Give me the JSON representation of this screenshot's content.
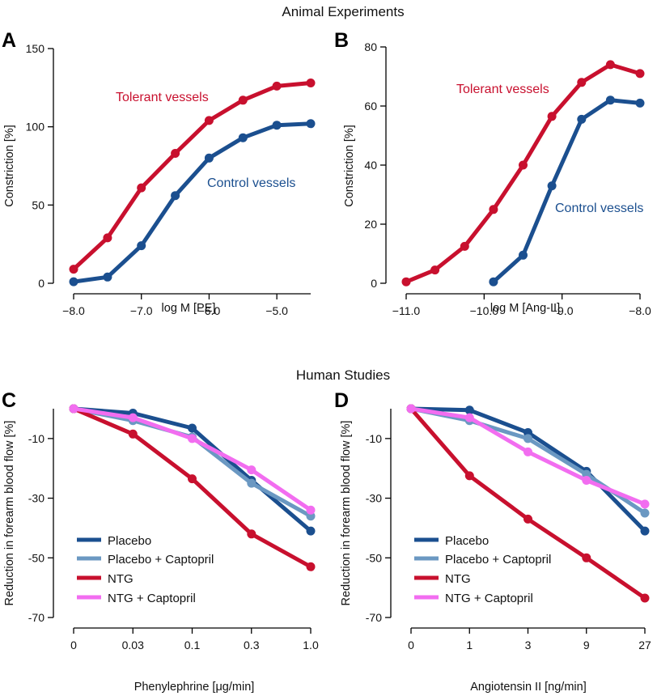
{
  "titles": {
    "top": "Animal Experiments",
    "bottom": "Human Studies"
  },
  "colors": {
    "red": "#c8102e",
    "blue": "#1b4f8f",
    "lightblue": "#6b98c2",
    "pink": "#f26df0"
  },
  "chart_data": [
    {
      "id": "A",
      "type": "line",
      "letter": "A",
      "xlabel": "log M [PE]",
      "ylabel": "Constriction [%]",
      "xlim": [
        -8.0,
        -4.5
      ],
      "ylim": [
        0,
        150
      ],
      "xticks": [
        -8.0,
        -7.0,
        -6.0,
        -5.0
      ],
      "xticklabels": [
        "−8.0",
        "−7.0",
        "−6.0",
        "−5.0"
      ],
      "yticks": [
        0,
        50,
        100,
        150
      ],
      "yticklabels": [
        "0",
        "50",
        "100",
        "150"
      ],
      "series": [
        {
          "name": "Tolerant vessels",
          "color": "red",
          "x": [
            -8.0,
            -7.5,
            -7.0,
            -6.5,
            -6.0,
            -5.5,
            -5.0,
            -4.5
          ],
          "y": [
            9,
            29,
            61,
            83,
            104,
            117,
            126,
            128
          ]
        },
        {
          "name": "Control vessels",
          "color": "blue",
          "x": [
            -8.0,
            -7.5,
            -7.0,
            -6.5,
            -6.0,
            -5.5,
            -5.0,
            -4.5
          ],
          "y": [
            1,
            4,
            24,
            56,
            80,
            93,
            101,
            102
          ]
        }
      ]
    },
    {
      "id": "B",
      "type": "line",
      "letter": "B",
      "xlabel": "log M [Ang-II]",
      "ylabel": "Constriction [%]",
      "xlim": [
        -11.0,
        -8.0
      ],
      "ylim": [
        0,
        80
      ],
      "xticks": [
        -11.0,
        -10.0,
        -9.0,
        -8.0
      ],
      "xticklabels": [
        "−11.0",
        "−10.0",
        "−9.0",
        "−8.0"
      ],
      "yticks": [
        0,
        20,
        40,
        60,
        80
      ],
      "yticklabels": [
        "0",
        "20",
        "40",
        "60",
        "80"
      ],
      "series": [
        {
          "name": "Tolerant vessels",
          "color": "red",
          "x": [
            -11.0,
            -10.63,
            -10.25,
            -9.88,
            -9.5,
            -9.13,
            -8.75,
            -8.38,
            -8.0
          ],
          "y": [
            0.5,
            4.5,
            12.5,
            25,
            40,
            56.5,
            68,
            74,
            71
          ]
        },
        {
          "name": "Control vessels",
          "color": "blue",
          "x": [
            -9.88,
            -9.5,
            -9.13,
            -8.75,
            -8.38,
            -8.0
          ],
          "y": [
            0.5,
            9.5,
            33,
            55.5,
            62,
            61
          ]
        }
      ]
    },
    {
      "id": "C",
      "type": "line",
      "letter": "C",
      "xlabel": "Phenylephrine [μg/min]",
      "ylabel": "Reduction in forearm blood flow [%]",
      "categories": [
        "0",
        "0.03",
        "0.1",
        "0.3",
        "1.0"
      ],
      "ylim": [
        -70,
        0
      ],
      "yticks": [
        -10,
        -30,
        -50,
        -70
      ],
      "yticklabels": [
        "-10",
        "-30",
        "-50",
        "-70"
      ],
      "series": [
        {
          "name": "Placebo",
          "color": "blue",
          "values": [
            0,
            -1.5,
            -6.5,
            -24,
            -41
          ]
        },
        {
          "name": "Placebo + Captopril",
          "color": "lightblue",
          "values": [
            0,
            -4,
            -9.5,
            -25,
            -36
          ]
        },
        {
          "name": "NTG",
          "color": "red",
          "values": [
            0,
            -8.5,
            -23.5,
            -42,
            -53
          ]
        },
        {
          "name": "NTG + Captopril",
          "color": "pink",
          "values": [
            0,
            -3,
            -10,
            -20.5,
            -34
          ]
        }
      ]
    },
    {
      "id": "D",
      "type": "line",
      "letter": "D",
      "xlabel": "Angiotensin II [ng/min]",
      "ylabel": "Reduction in forearm blood flow [%]",
      "categories": [
        "0",
        "1",
        "3",
        "9",
        "27"
      ],
      "ylim": [
        -70,
        0
      ],
      "yticks": [
        -10,
        -30,
        -50,
        -70
      ],
      "yticklabels": [
        "-10",
        "-30",
        "-50",
        "-70"
      ],
      "series": [
        {
          "name": "Placebo",
          "color": "blue",
          "values": [
            0,
            -0.5,
            -8,
            -21,
            -41
          ]
        },
        {
          "name": "Placebo + Captopril",
          "color": "lightblue",
          "values": [
            0,
            -4,
            -10,
            -22,
            -35
          ]
        },
        {
          "name": "NTG",
          "color": "red",
          "values": [
            0,
            -22.5,
            -37,
            -50,
            -63.5
          ]
        },
        {
          "name": "NTG + Captopril",
          "color": "pink",
          "values": [
            0,
            -3,
            -14.5,
            -24,
            -32
          ]
        }
      ]
    }
  ]
}
